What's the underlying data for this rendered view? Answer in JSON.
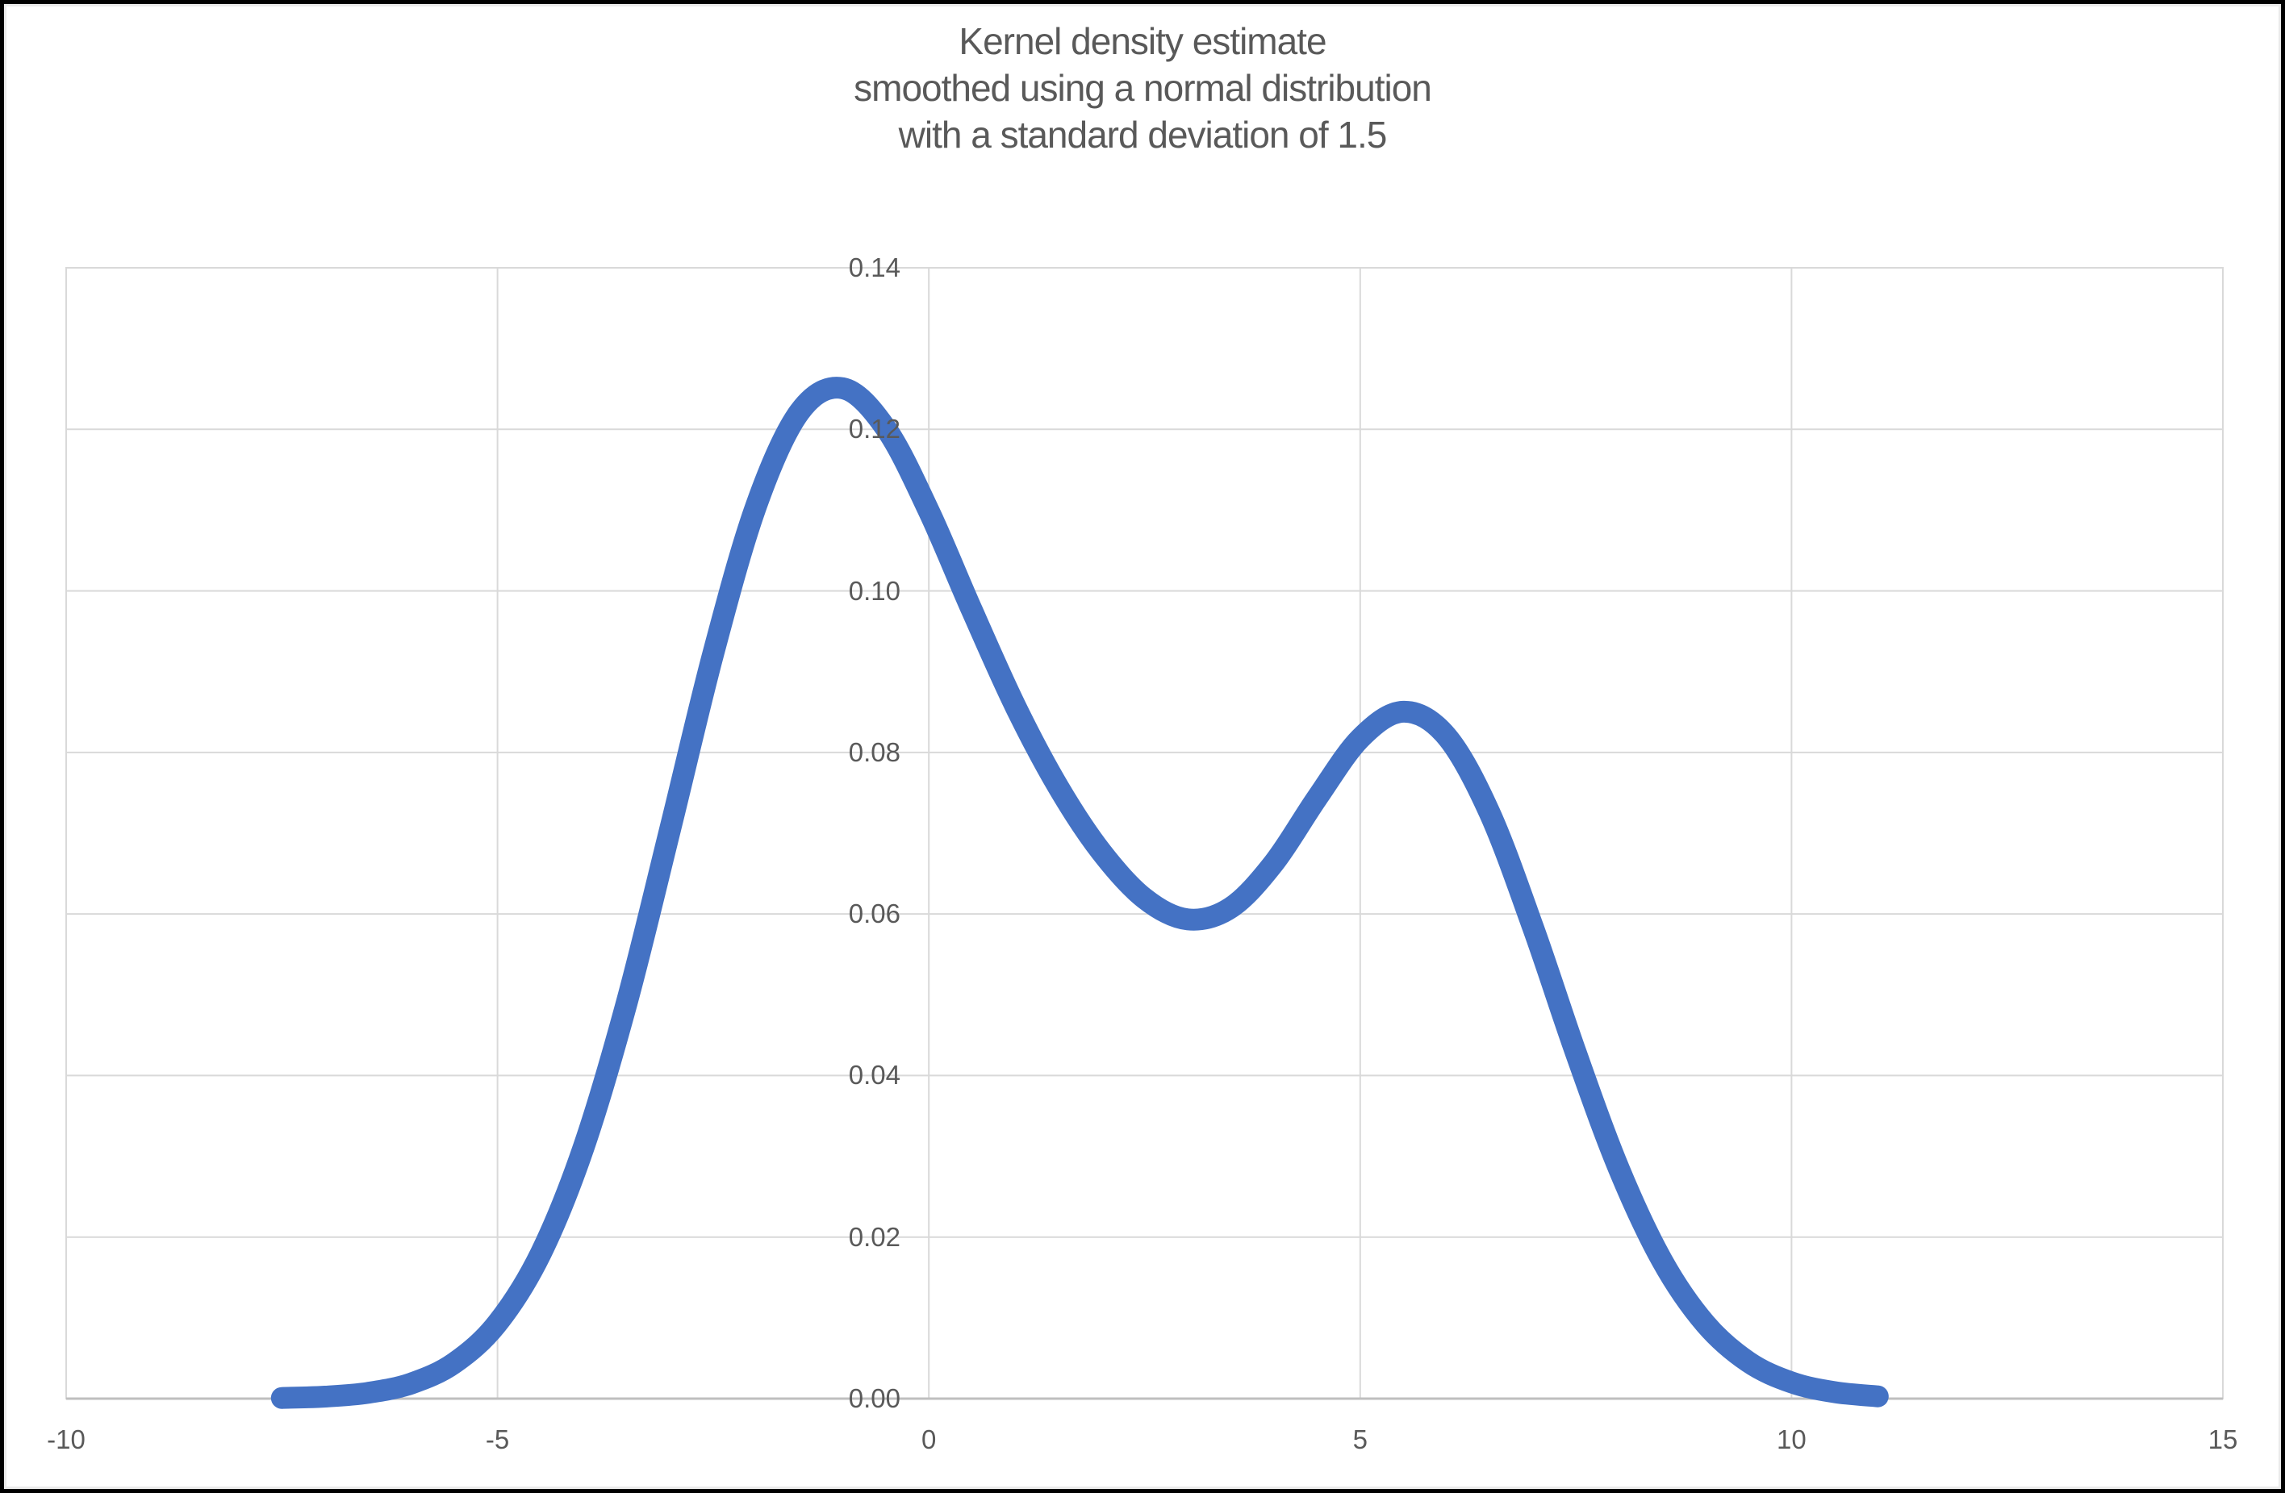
{
  "title": {
    "lines": [
      "Kernel density estimate",
      "smoothed using a normal distribution",
      "with a standard deviation of 1.5"
    ]
  },
  "colors": {
    "curve": "#4472C4",
    "gridline": "#D9D9D9",
    "axis_line": "#BFBFBF",
    "text": "#595959",
    "background": "#FFFFFF",
    "frame": "#000000"
  },
  "chart_data": {
    "type": "line",
    "title": "Kernel density estimate smoothed using a normal distribution with a standard deviation of 1.5",
    "xlabel": "",
    "ylabel": "",
    "xlim": [
      -10,
      15
    ],
    "ylim": [
      0,
      0.14
    ],
    "grid": true,
    "legend": false,
    "x_ticks": {
      "values": [
        -10,
        -5,
        0,
        5,
        10,
        15
      ],
      "labels": [
        "-10",
        "-5",
        "0",
        "5",
        "10",
        "15"
      ]
    },
    "y_ticks": {
      "values": [
        0,
        0.02,
        0.04,
        0.06,
        0.08,
        0.1,
        0.12,
        0.14
      ],
      "labels": [
        "0.00",
        "0.02",
        "0.04",
        "0.06",
        "0.08",
        "0.10",
        "0.12",
        "0.14"
      ]
    },
    "x_gridline_values": [
      -5,
      0,
      5,
      10
    ],
    "series": [
      {
        "name": "kernel density estimate",
        "points": [
          [
            -7.5,
            7.7e-05
          ],
          [
            -7.0,
            0.000249
          ],
          [
            -6.5,
            0.00072
          ],
          [
            -6.0,
            0.001878
          ],
          [
            -5.5,
            0.004415
          ],
          [
            -5.0,
            0.009352
          ],
          [
            -4.5,
            0.017944
          ],
          [
            -4.0,
            0.031154
          ],
          [
            -3.5,
            0.049104
          ],
          [
            -3.0,
            0.070428
          ],
          [
            -2.5,
            0.092202
          ],
          [
            -2.0,
            0.11059
          ],
          [
            -1.5,
            0.122131
          ],
          [
            -1.0,
            0.125093
          ],
          [
            -0.5,
            0.120145
          ],
          [
            0.0,
            0.109883
          ],
          [
            0.5,
            0.09758
          ],
          [
            1.0,
            0.085788
          ],
          [
            1.5,
            0.075721
          ],
          [
            2.0,
            0.067672
          ],
          [
            2.5,
            0.061927
          ],
          [
            3.0,
            0.059332
          ],
          [
            3.5,
            0.060783
          ],
          [
            4.0,
            0.06633
          ],
          [
            4.5,
            0.07435
          ],
          [
            5.0,
            0.081731
          ],
          [
            5.5,
            0.085042
          ],
          [
            6.0,
            0.082023
          ],
          [
            6.5,
            0.072528
          ],
          [
            7.0,
            0.058461
          ],
          [
            7.5,
            0.042815
          ],
          [
            8.0,
            0.028424
          ],
          [
            8.5,
            0.017081
          ],
          [
            9.0,
            0.009275
          ],
          [
            9.5,
            0.004541
          ],
          [
            10.0,
            0.002003
          ],
          [
            10.5,
            0.000796
          ],
          [
            11.0,
            0.000284
          ]
        ]
      }
    ]
  }
}
